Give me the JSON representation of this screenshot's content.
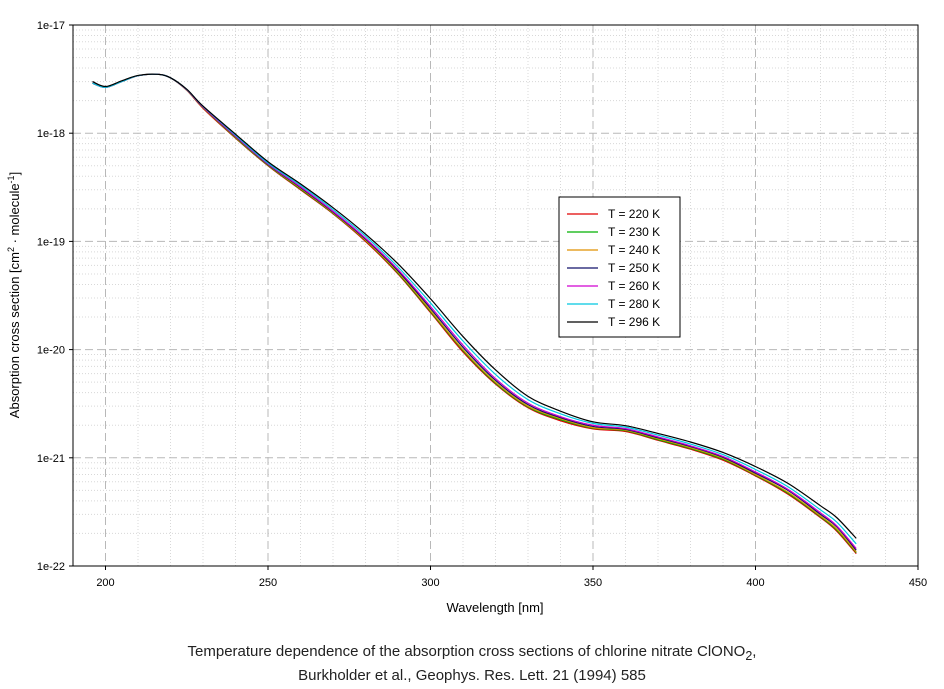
{
  "chart_data": {
    "type": "line",
    "title": "",
    "xlabel": "Wavelength [nm]",
    "ylabel_parts": [
      "Absorption cross section [cm",
      "2",
      " · molecule",
      "-1",
      "]"
    ],
    "xlim": [
      190,
      450
    ],
    "ylim": [
      1e-22,
      1e-17
    ],
    "yscale": "log",
    "grid": true,
    "x_ticks": [
      "200",
      "250",
      "300",
      "350",
      "400",
      "450"
    ],
    "y_ticks": [
      "1e-22",
      "1e-21",
      "1e-20",
      "1e-19",
      "1e-18",
      "1e-17"
    ],
    "legend_position": "center-right",
    "x": [
      196,
      200,
      205,
      210,
      216,
      220,
      225,
      230,
      240,
      250,
      260,
      270,
      280,
      290,
      300,
      310,
      320,
      330,
      340,
      350,
      360,
      370,
      380,
      390,
      400,
      410,
      420,
      425,
      431
    ],
    "series": [
      {
        "name": "T = 220 K",
        "color": "#e00000",
        "values": [
          2.9e-18,
          2.65e-18,
          3e-18,
          3.4e-18,
          3.5e-18,
          3.25e-18,
          2.5e-18,
          1.7e-18,
          9e-19,
          5e-19,
          3e-19,
          1.8e-19,
          1e-19,
          5e-20,
          2.2e-20,
          9.5e-21,
          4.8e-21,
          2.9e-21,
          2.2e-21,
          1.85e-21,
          1.75e-21,
          1.45e-21,
          1.2e-21,
          9.5e-22,
          6.8e-22,
          4.6e-22,
          2.8e-22,
          2.1e-22,
          1.3e-22
        ]
      },
      {
        "name": "T = 230 K",
        "color": "#00b000",
        "values": [
          2.9e-18,
          2.65e-18,
          3e-18,
          3.4e-18,
          3.5e-18,
          3.25e-18,
          2.5e-18,
          1.72e-18,
          9.1e-19,
          5.05e-19,
          3.05e-19,
          1.82e-19,
          1.02e-19,
          5.1e-20,
          2.25e-20,
          9.8e-21,
          4.9e-21,
          2.95e-21,
          2.25e-21,
          1.88e-21,
          1.78e-21,
          1.47e-21,
          1.22e-21,
          9.7e-22,
          6.9e-22,
          4.7e-22,
          2.85e-22,
          2.15e-22,
          1.33e-22
        ]
      },
      {
        "name": "T = 240 K",
        "color": "#e09000",
        "values": [
          2.9e-18,
          2.65e-18,
          3e-18,
          3.4e-18,
          3.5e-18,
          3.25e-18,
          2.5e-18,
          1.72e-18,
          9.2e-19,
          5.1e-19,
          3.1e-19,
          1.84e-19,
          1.03e-19,
          5.2e-20,
          2.3e-20,
          1e-20,
          5e-21,
          3e-21,
          2.3e-21,
          1.9e-21,
          1.8e-21,
          1.5e-21,
          1.24e-21,
          9.9e-22,
          7e-22,
          4.8e-22,
          2.9e-22,
          2.2e-22,
          1.35e-22
        ]
      },
      {
        "name": "T = 250 K",
        "color": "#10106a",
        "values": [
          2.9e-18,
          2.65e-18,
          3e-18,
          3.4e-18,
          3.5e-18,
          3.25e-18,
          2.52e-18,
          1.74e-18,
          9.3e-19,
          5.15e-19,
          3.15e-19,
          1.87e-19,
          1.05e-19,
          5.35e-20,
          2.4e-20,
          1.05e-20,
          5.2e-21,
          3.1e-21,
          2.35e-21,
          1.95e-21,
          1.83e-21,
          1.53e-21,
          1.27e-21,
          1.01e-21,
          7.2e-22,
          5e-22,
          3e-22,
          2.3e-22,
          1.4e-22
        ]
      },
      {
        "name": "T = 260 K",
        "color": "#d000d0",
        "values": [
          2.9e-18,
          2.65e-18,
          3e-18,
          3.4e-18,
          3.5e-18,
          3.25e-18,
          2.52e-18,
          1.75e-18,
          9.4e-19,
          5.2e-19,
          3.2e-19,
          1.9e-19,
          1.07e-19,
          5.5e-20,
          2.5e-20,
          1.1e-20,
          5.4e-21,
          3.2e-21,
          2.4e-21,
          2e-21,
          1.86e-21,
          1.56e-21,
          1.29e-21,
          1.03e-21,
          7.4e-22,
          5.1e-22,
          3.1e-22,
          2.35e-22,
          1.45e-22
        ]
      },
      {
        "name": "T = 280 K",
        "color": "#00c8e0",
        "values": [
          2.9e-18,
          2.65e-18,
          3e-18,
          3.4e-18,
          3.5e-18,
          3.25e-18,
          2.54e-18,
          1.77e-18,
          9.6e-19,
          5.3e-19,
          3.3e-19,
          1.97e-19,
          1.12e-19,
          5.8e-20,
          2.7e-20,
          1.2e-20,
          5.9e-21,
          3.45e-21,
          2.55e-21,
          2.08e-21,
          1.92e-21,
          1.62e-21,
          1.34e-21,
          1.07e-21,
          7.8e-22,
          5.4e-22,
          3.3e-22,
          2.55e-22,
          1.6e-22
        ]
      },
      {
        "name": "T = 296 K",
        "color": "#000000",
        "values": [
          3e-18,
          2.7e-18,
          3.05e-18,
          3.42e-18,
          3.5e-18,
          3.25e-18,
          2.55e-18,
          1.78e-18,
          9.8e-19,
          5.45e-19,
          3.4e-19,
          2.05e-19,
          1.17e-19,
          6.2e-20,
          2.95e-20,
          1.32e-20,
          6.5e-21,
          3.7e-21,
          2.7e-21,
          2.15e-21,
          1.98e-21,
          1.68e-21,
          1.4e-21,
          1.12e-21,
          8.3e-22,
          5.8e-22,
          3.6e-22,
          2.8e-22,
          1.8e-22
        ]
      }
    ]
  },
  "caption": {
    "line1_main": "Temperature dependence of the absorption cross sections of chlorine nitrate ClONO",
    "line1_sub": "2",
    "line1_end": ",",
    "line2": "Burkholder et al., Geophys. Res. Lett. 21 (1994) 585"
  }
}
